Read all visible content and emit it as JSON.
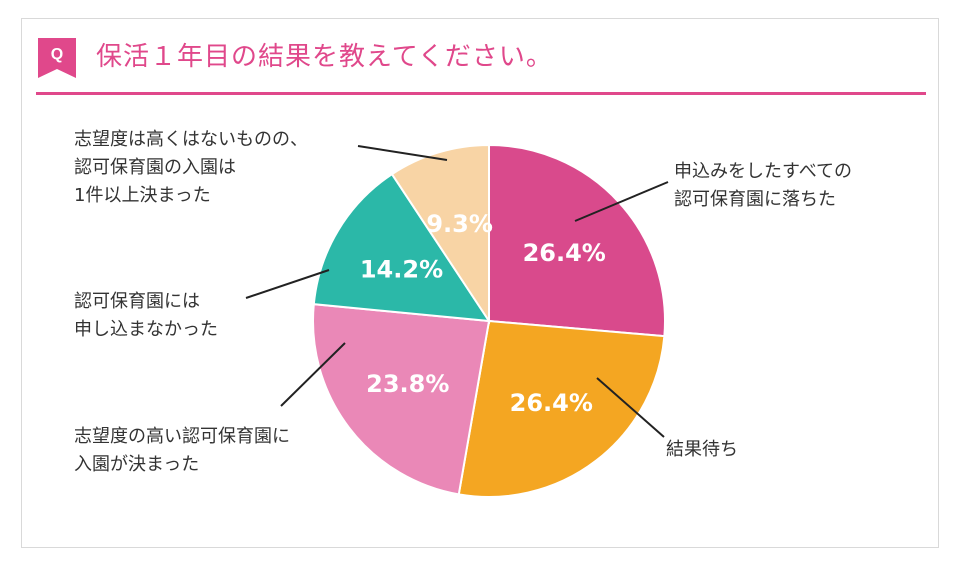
{
  "header": {
    "q_badge": "Q",
    "title": "保活１年目の結果を教えてください。",
    "accent_color": "#e0488b"
  },
  "chart_data": {
    "type": "pie",
    "title": "保活１年目の結果を教えてください。",
    "start_angle_deg": 0,
    "direction": "clockwise",
    "slices": [
      {
        "label": [
          "申込みをしたすべての",
          "認可保育園に落ちた"
        ],
        "value": 26.4,
        "value_label": "26.4%",
        "color": "#d94a8c"
      },
      {
        "label": [
          "結果待ち"
        ],
        "value": 26.4,
        "value_label": "26.4%",
        "color": "#f4a622"
      },
      {
        "label": [
          "志望度の高い認可保育園に",
          "入園が決まった"
        ],
        "value": 23.8,
        "value_label": "23.8%",
        "color": "#ea88b7"
      },
      {
        "label": [
          "認可保育園には",
          "申し込まなかった"
        ],
        "value": 14.2,
        "value_label": "14.2%",
        "color": "#2bb8a8"
      },
      {
        "label": [
          "志望度は高くはないものの、",
          "認可保育園の入園は",
          "1件以上決まった"
        ],
        "value": 9.3,
        "value_label": "9.3%",
        "color": "#f8d4a5"
      }
    ]
  }
}
